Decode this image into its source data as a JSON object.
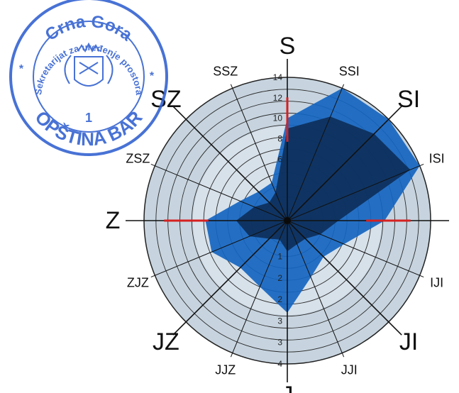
{
  "chart_data": {
    "type": "radar",
    "title": "",
    "directions": [
      "S",
      "SSI",
      "SI",
      "ISI",
      "I",
      "IJI",
      "JI",
      "JJI",
      "J",
      "JJZ",
      "JZ",
      "ZJZ",
      "Z",
      "ZSZ",
      "SZ",
      "SSZ"
    ],
    "major_directions": [
      "S",
      "SI",
      "I",
      "JI",
      "J",
      "JZ",
      "Z",
      "SZ"
    ],
    "radial_range": [
      0,
      14
    ],
    "radial_ticks": {
      "north": [
        "14",
        "12",
        "10",
        "8",
        "6"
      ],
      "south": [
        "1",
        "2",
        "2",
        "3",
        "3",
        "4"
      ]
    },
    "grid": true,
    "series": [
      {
        "values": [
          10,
          14,
          14,
          14,
          9.5,
          6,
          5,
          6,
          9,
          7,
          6.5,
          8,
          8,
          5,
          4,
          4
        ],
        "color": "#1565c0"
      },
      {
        "values": [
          9,
          11,
          12,
          13,
          5,
          3.5,
          2.5,
          2.5,
          3,
          2,
          2.5,
          4,
          5,
          3.5,
          2.5,
          3
        ],
        "color": "#0c2a52"
      }
    ],
    "red_marks": [
      "S",
      "I",
      "Z"
    ]
  },
  "stamp": {
    "arc_top": "Crna Gora",
    "arc_inner": "Sekretarijat za uređenje prostora",
    "number": "1",
    "arc_bottom": "OPŠTINA BAR",
    "color": "#2f5fd0"
  }
}
